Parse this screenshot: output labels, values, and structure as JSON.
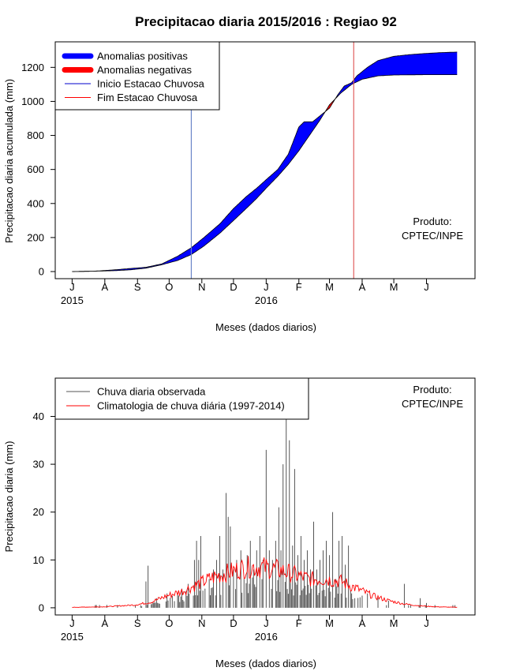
{
  "title": "Precipitacao diaria 2015/2016 : Regiao 92",
  "chart_data": [
    {
      "type": "area",
      "ylabel": "Precipitacao diaria acumulada (mm)",
      "xlabel": "Meses (dados diarios)",
      "ylim": [
        0,
        1350
      ],
      "yticks": [
        0,
        200,
        400,
        600,
        800,
        1000,
        1200
      ],
      "xticks": [
        {
          "day": 0,
          "label": "J"
        },
        {
          "day": 31,
          "label": "A"
        },
        {
          "day": 62,
          "label": "S"
        },
        {
          "day": 92,
          "label": "O"
        },
        {
          "day": 123,
          "label": "N"
        },
        {
          "day": 153,
          "label": "D"
        },
        {
          "day": 184,
          "label": "J"
        },
        {
          "day": 215,
          "label": "F"
        },
        {
          "day": 244,
          "label": "M"
        },
        {
          "day": 275,
          "label": "A"
        },
        {
          "day": 305,
          "label": "M"
        },
        {
          "day": 336,
          "label": "J"
        }
      ],
      "year_labels": [
        {
          "day": 0,
          "label": "2015"
        },
        {
          "day": 184,
          "label": "2016"
        }
      ],
      "xlim": [
        -16,
        382
      ],
      "legend": [
        {
          "label": "Anomalias positivas",
          "color": "#0000ff",
          "kind": "thick"
        },
        {
          "label": "Anomalias negativas",
          "color": "#ff0000",
          "kind": "thick"
        },
        {
          "label": "Inicio Estacao Chuvosa",
          "color": "#0000cc",
          "kind": "thin"
        },
        {
          "label": "Fim Estacao Chuvosa",
          "color": "#ff0000",
          "kind": "thin"
        }
      ],
      "legend_position": "top-left",
      "annotation": [
        "Produto:",
        "CPTEC/INPE"
      ],
      "season_start_day": 113,
      "season_end_day": 267,
      "colors": {
        "positive": "#0000ff",
        "negative": "#ff0000",
        "start_line": "#6a85c8",
        "end_line": "#e06060"
      },
      "climatology": {
        "day": [
          0,
          20,
          40,
          55,
          70,
          85,
          100,
          113,
          125,
          140,
          153,
          165,
          175,
          184,
          195,
          205,
          215,
          225,
          235,
          244,
          255,
          265,
          275,
          290,
          305,
          320,
          336,
          350,
          365
        ],
        "value": [
          0,
          2,
          5,
          10,
          20,
          40,
          65,
          100,
          150,
          225,
          300,
          370,
          430,
          490,
          560,
          630,
          710,
          800,
          890,
          980,
          1050,
          1100,
          1130,
          1150,
          1155,
          1156,
          1157,
          1157,
          1157
        ]
      },
      "observed": {
        "day": [
          0,
          20,
          40,
          55,
          70,
          85,
          100,
          113,
          125,
          140,
          153,
          165,
          175,
          184,
          195,
          205,
          210,
          215,
          220,
          228,
          235,
          244,
          252,
          258,
          265,
          270,
          280,
          290,
          305,
          320,
          336,
          350,
          365
        ],
        "value": [
          0,
          2,
          10,
          18,
          25,
          45,
          90,
          140,
          200,
          280,
          370,
          440,
          490,
          540,
          600,
          690,
          770,
          850,
          880,
          880,
          915,
          960,
          1040,
          1090,
          1110,
          1150,
          1200,
          1240,
          1265,
          1275,
          1282,
          1287,
          1290
        ]
      }
    },
    {
      "type": "line",
      "ylabel": "Precipitacao diaria (mm)",
      "xlabel": "Meses (dados diarios)",
      "ylim": [
        -1.5,
        48
      ],
      "yticks": [
        0,
        10,
        20,
        30,
        40
      ],
      "xlim": [
        -16,
        382
      ],
      "legend": [
        {
          "label": "Chuva diaria observada",
          "color": "#555555"
        },
        {
          "label": "Climatologia de chuva diária (1997-2014)",
          "color": "#ff0000"
        }
      ],
      "legend_position": "top-left",
      "annotation": [
        "Produto:",
        "CPTEC/INPE"
      ],
      "series": [
        {
          "name": "Chuva diaria observada",
          "color": "#555555",
          "kind": "bars",
          "peaks": [
            {
              "day": 70,
              "value": 5.5
            },
            {
              "day": 72,
              "value": 8.8
            },
            {
              "day": 80,
              "value": 2.0
            },
            {
              "day": 90,
              "value": 3.0
            },
            {
              "day": 95,
              "value": 2.5
            },
            {
              "day": 100,
              "value": 3.0
            },
            {
              "day": 104,
              "value": 4.0
            },
            {
              "day": 108,
              "value": 3.5
            },
            {
              "day": 110,
              "value": 5.0
            },
            {
              "day": 116,
              "value": 10.0
            },
            {
              "day": 118,
              "value": 14.0
            },
            {
              "day": 120,
              "value": 10.0
            },
            {
              "day": 122,
              "value": 15.0
            },
            {
              "day": 126,
              "value": 4.0
            },
            {
              "day": 130,
              "value": 6.0
            },
            {
              "day": 134,
              "value": 8.0
            },
            {
              "day": 137,
              "value": 10.0
            },
            {
              "day": 140,
              "value": 15.0
            },
            {
              "day": 143,
              "value": 8.0
            },
            {
              "day": 146,
              "value": 24.0
            },
            {
              "day": 148,
              "value": 19.0
            },
            {
              "day": 150,
              "value": 17.0
            },
            {
              "day": 153,
              "value": 8.0
            },
            {
              "day": 156,
              "value": 10.0
            },
            {
              "day": 160,
              "value": 12.0
            },
            {
              "day": 163,
              "value": 6.0
            },
            {
              "day": 166,
              "value": 11.0
            },
            {
              "day": 169,
              "value": 14.0
            },
            {
              "day": 172,
              "value": 8.0
            },
            {
              "day": 175,
              "value": 12.0
            },
            {
              "day": 178,
              "value": 15.0
            },
            {
              "day": 181,
              "value": 10.0
            },
            {
              "day": 184,
              "value": 33.0
            },
            {
              "day": 187,
              "value": 12.0
            },
            {
              "day": 190,
              "value": 10.0
            },
            {
              "day": 193,
              "value": 14.0
            },
            {
              "day": 196,
              "value": 21.0
            },
            {
              "day": 198,
              "value": 12.0
            },
            {
              "day": 200,
              "value": 30.0
            },
            {
              "day": 203,
              "value": 42.0
            },
            {
              "day": 206,
              "value": 35.0
            },
            {
              "day": 209,
              "value": 13.0
            },
            {
              "day": 211,
              "value": 29.0
            },
            {
              "day": 214,
              "value": 11.0
            },
            {
              "day": 217,
              "value": 15.0
            },
            {
              "day": 220,
              "value": 10.0
            },
            {
              "day": 223,
              "value": 12.0
            },
            {
              "day": 226,
              "value": 8.0
            },
            {
              "day": 229,
              "value": 18.0
            },
            {
              "day": 232,
              "value": 8.0
            },
            {
              "day": 235,
              "value": 10.0
            },
            {
              "day": 238,
              "value": 12.0
            },
            {
              "day": 241,
              "value": 14.0
            },
            {
              "day": 244,
              "value": 11.0
            },
            {
              "day": 247,
              "value": 20.0
            },
            {
              "day": 250,
              "value": 6.0
            },
            {
              "day": 253,
              "value": 14.0
            },
            {
              "day": 256,
              "value": 15.0
            },
            {
              "day": 259,
              "value": 9.0
            },
            {
              "day": 262,
              "value": 13.0
            },
            {
              "day": 265,
              "value": 3.0
            },
            {
              "day": 268,
              "value": 2.0
            },
            {
              "day": 280,
              "value": 3.0
            },
            {
              "day": 290,
              "value": 2.0
            },
            {
              "day": 300,
              "value": 1.5
            },
            {
              "day": 315,
              "value": 5.0
            },
            {
              "day": 330,
              "value": 2.0
            },
            {
              "day": 336,
              "value": 1.0
            }
          ]
        },
        {
          "name": "Climatologia de chuva diária (1997-2014)",
          "color": "#ff0000",
          "kind": "line",
          "day": [
            0,
            30,
            60,
            75,
            90,
            105,
            120,
            135,
            150,
            165,
            180,
            195,
            210,
            225,
            240,
            255,
            270,
            285,
            300,
            315,
            330,
            345,
            365
          ],
          "value": [
            0.1,
            0.2,
            0.6,
            1.2,
            2.5,
            3.5,
            5.0,
            6.5,
            7.5,
            8.5,
            8.5,
            8.0,
            7.0,
            6.0,
            6.0,
            5.5,
            4.0,
            2.5,
            1.5,
            0.8,
            0.4,
            0.2,
            0.1
          ]
        }
      ]
    }
  ]
}
